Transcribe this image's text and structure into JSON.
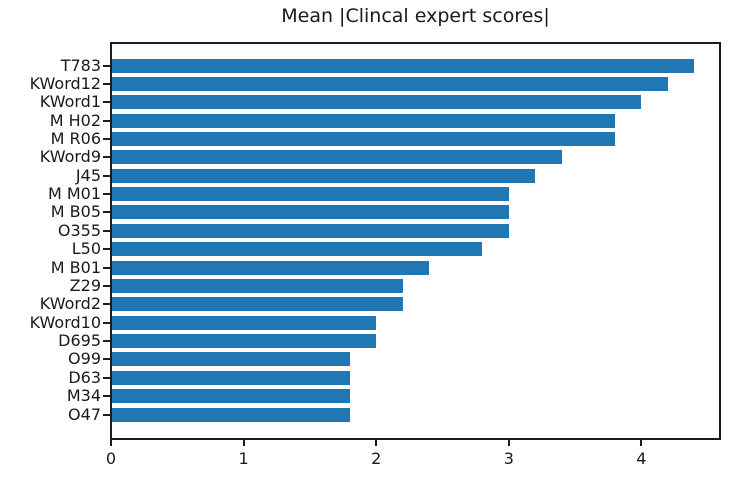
{
  "chart_data": {
    "type": "bar",
    "orientation": "horizontal",
    "title": "Mean |Clincal expert scores|",
    "categories": [
      "T783",
      "KWord12",
      "KWord1",
      "M H02",
      "M R06",
      "KWord9",
      "J45",
      "M M01",
      "M B05",
      "O355",
      "L50",
      "M B01",
      "Z29",
      "KWord2",
      "KWord10",
      "D695",
      "O99",
      "D63",
      "M34",
      "O47"
    ],
    "values": [
      4.4,
      4.2,
      4.0,
      3.8,
      3.8,
      3.4,
      3.2,
      3.0,
      3.0,
      3.0,
      2.8,
      2.4,
      2.2,
      2.2,
      2.0,
      2.0,
      1.8,
      1.8,
      1.8,
      1.8
    ],
    "xlabel": "",
    "ylabel": "",
    "xlim": [
      0,
      4.6
    ],
    "xticks": [
      0,
      1,
      2,
      3,
      4
    ],
    "grid": false,
    "legend": "none",
    "bar_color": "#1f77b4",
    "text_color": "#1a1a1a",
    "background_color": "#ffffff"
  }
}
